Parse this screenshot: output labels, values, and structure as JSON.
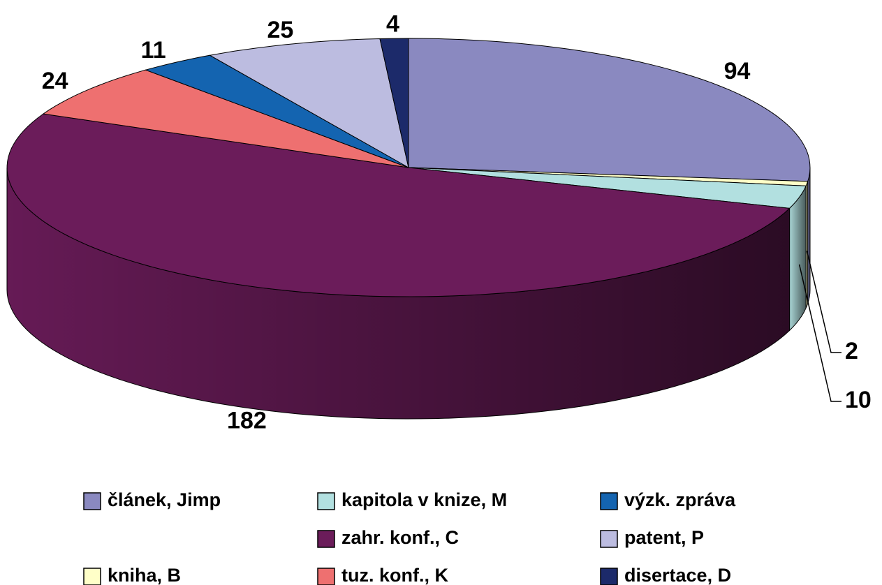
{
  "chart_data": {
    "type": "pie",
    "categories": [
      "článek, Jimp",
      "kniha, B",
      "kapitola v knize, M",
      "zahr. konf., C",
      "tuz. konf., K",
      "výzk. zpráva",
      "patent, P",
      "disertace, D"
    ],
    "values": [
      94,
      2,
      10,
      182,
      24,
      11,
      25,
      4
    ],
    "colors": [
      "#8a89c0",
      "#ffffc8",
      "#b2e0e0",
      "#6b1c5a",
      "#ee7070",
      "#1464b0",
      "#bcbce0",
      "#1c2a6a"
    ],
    "legend": "bottom"
  }
}
